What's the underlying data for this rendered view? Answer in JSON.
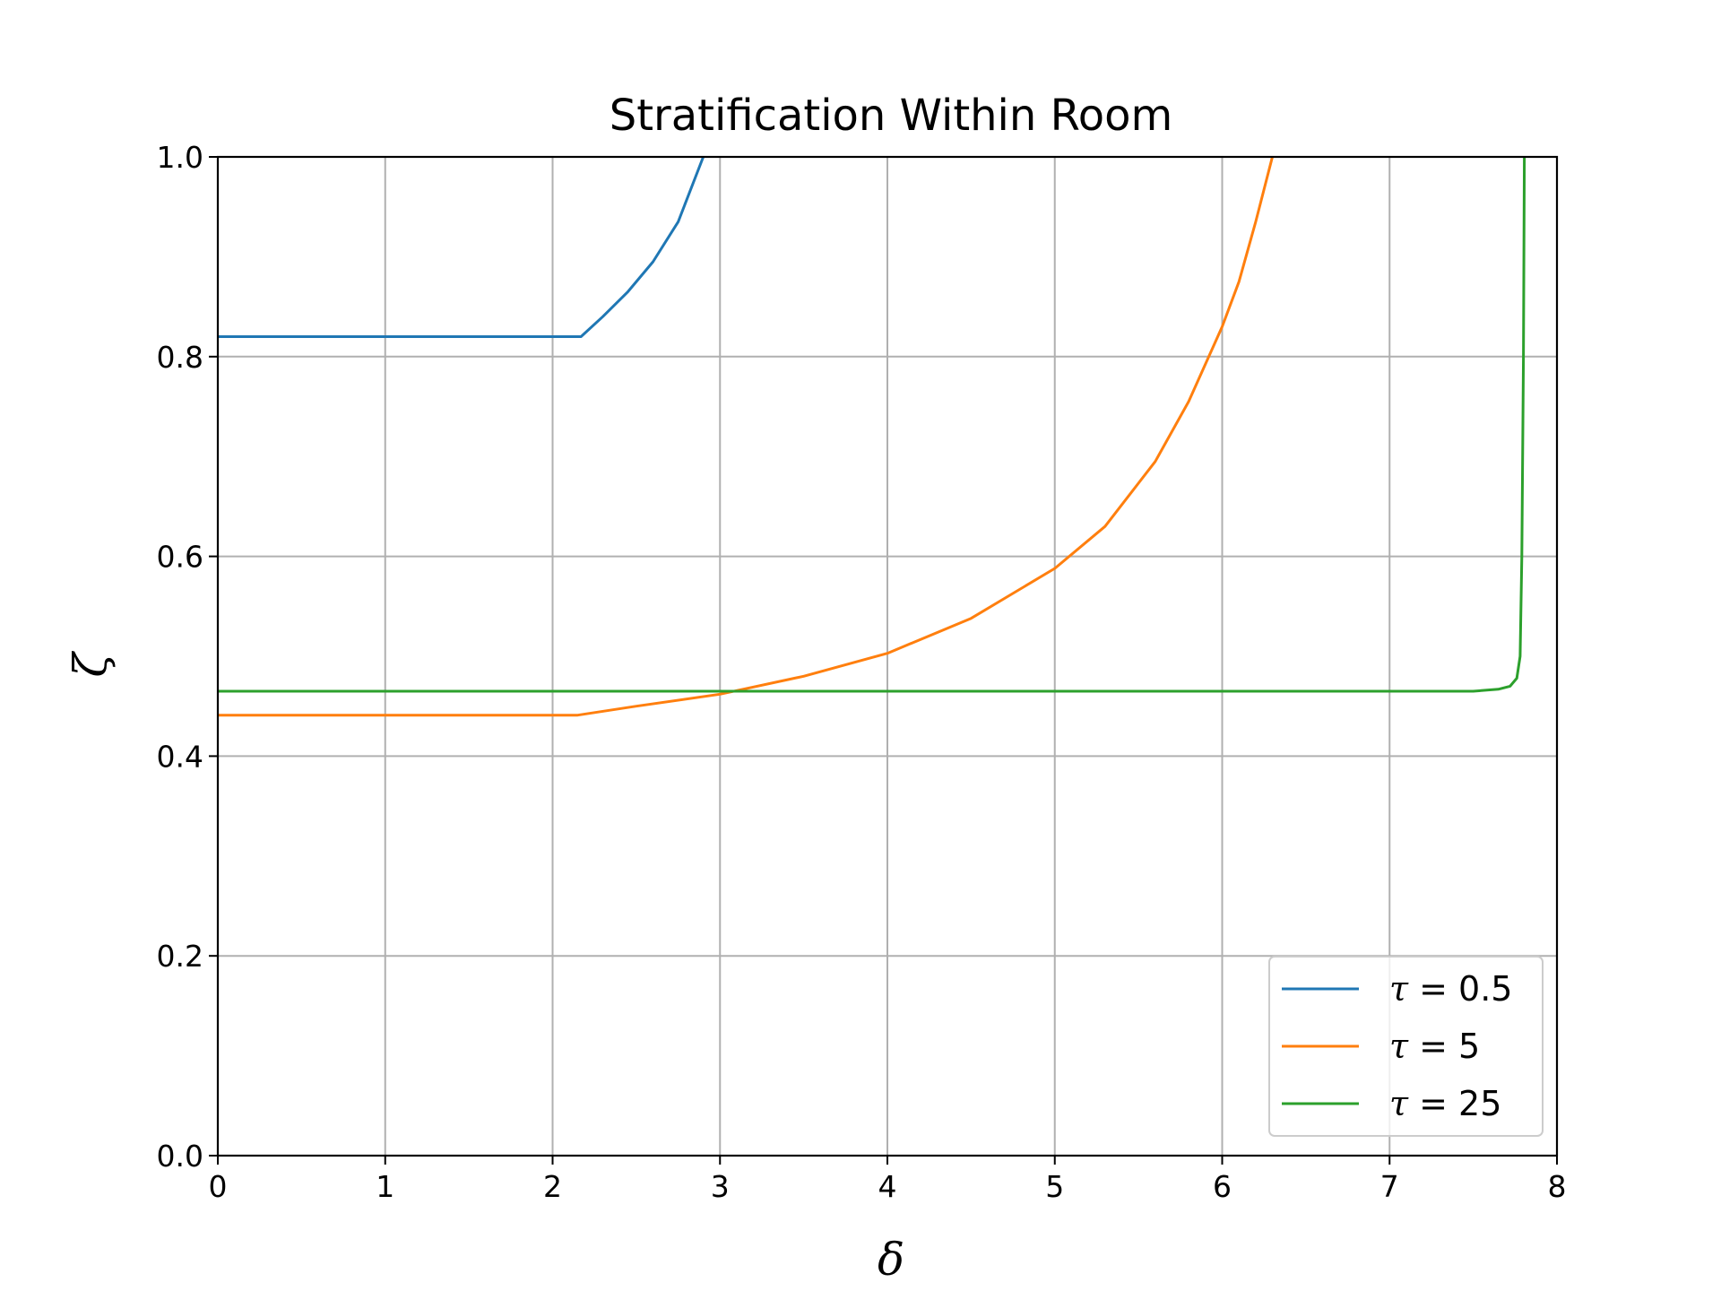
{
  "chart_data": {
    "type": "line",
    "title": "Stratification Within Room",
    "xlabel": "δ",
    "ylabel": "ζ",
    "xlim": [
      0,
      8
    ],
    "ylim": [
      0,
      1
    ],
    "xticks": [
      0,
      1,
      2,
      3,
      4,
      5,
      6,
      7,
      8
    ],
    "yticks": [
      0.0,
      0.2,
      0.4,
      0.6,
      0.8,
      1.0
    ],
    "xtick_labels": [
      "0",
      "1",
      "2",
      "3",
      "4",
      "5",
      "6",
      "7",
      "8"
    ],
    "ytick_labels": [
      "0.0",
      "0.2",
      "0.4",
      "0.6",
      "0.8",
      "1.0"
    ],
    "grid": true,
    "legend_position": "lower-right",
    "series": [
      {
        "name": "τ = 0.5",
        "symbol": "τ",
        "value_text": " = 0.5",
        "color": "#1f77b4",
        "points": [
          [
            0,
            0.82
          ],
          [
            2.17,
            0.82
          ],
          [
            2.3,
            0.84
          ],
          [
            2.45,
            0.865
          ],
          [
            2.6,
            0.895
          ],
          [
            2.75,
            0.935
          ],
          [
            2.9,
            1.0
          ]
        ]
      },
      {
        "name": "τ = 5",
        "symbol": "τ",
        "value_text": " = 5",
        "color": "#ff7f0e",
        "points": [
          [
            0,
            0.441
          ],
          [
            2.15,
            0.441
          ],
          [
            2.5,
            0.45
          ],
          [
            3.0,
            0.462
          ],
          [
            3.5,
            0.48
          ],
          [
            4.0,
            0.503
          ],
          [
            4.5,
            0.538
          ],
          [
            5.0,
            0.588
          ],
          [
            5.3,
            0.63
          ],
          [
            5.6,
            0.695
          ],
          [
            5.8,
            0.755
          ],
          [
            6.0,
            0.83
          ],
          [
            6.1,
            0.875
          ],
          [
            6.2,
            0.935
          ],
          [
            6.3,
            1.0
          ]
        ]
      },
      {
        "name": "τ = 25",
        "symbol": "τ",
        "value_text": " = 25",
        "color": "#2ca02c",
        "points": [
          [
            0,
            0.465
          ],
          [
            7.5,
            0.465
          ],
          [
            7.65,
            0.467
          ],
          [
            7.72,
            0.47
          ],
          [
            7.76,
            0.478
          ],
          [
            7.78,
            0.5
          ],
          [
            7.79,
            0.6
          ],
          [
            7.8,
            0.8
          ],
          [
            7.805,
            1.0
          ]
        ]
      }
    ]
  }
}
